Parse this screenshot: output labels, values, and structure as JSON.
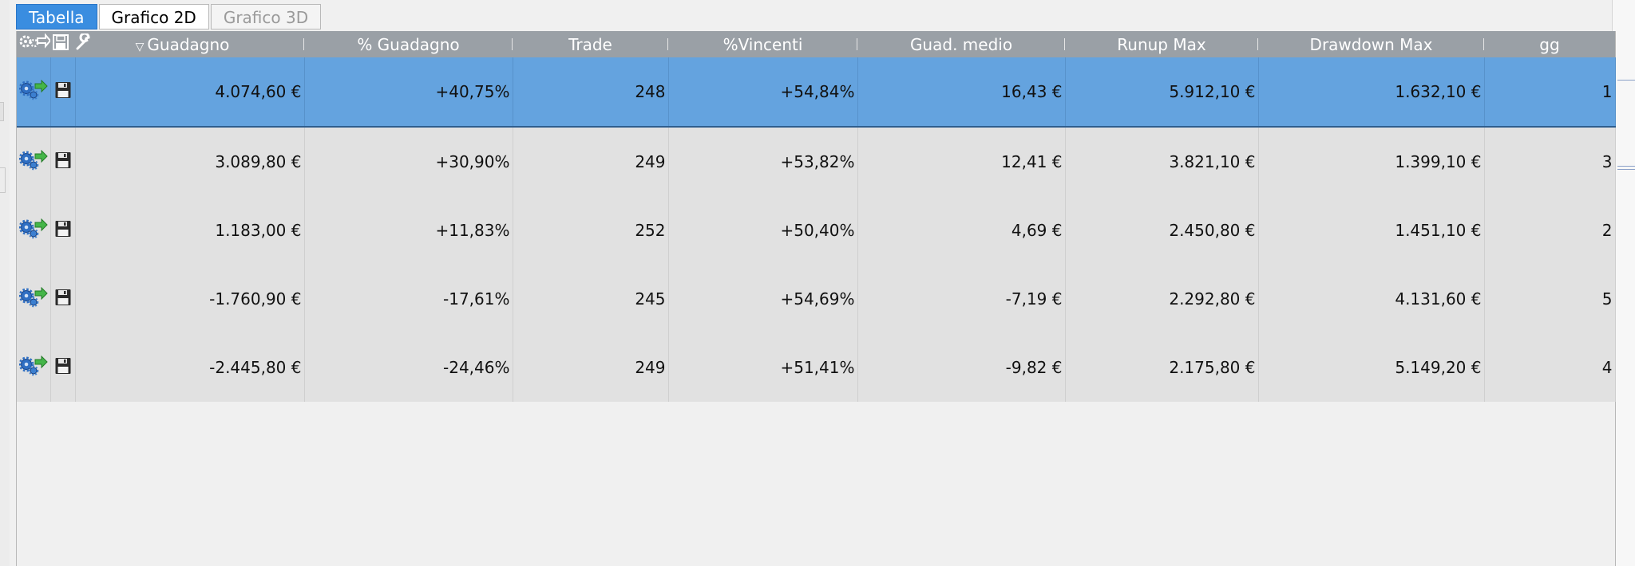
{
  "tabs": [
    {
      "label": "Tabella",
      "state": "active"
    },
    {
      "label": "Grafico 2D",
      "state": "normal"
    },
    {
      "label": "Grafico 3D",
      "state": "disabled"
    }
  ],
  "header_icons": [
    "gears-arrow-icon",
    "save-icon",
    "wrench-icon"
  ],
  "columns": [
    {
      "label": "Guadagno",
      "sorted": "desc"
    },
    {
      "label": "% Guadagno"
    },
    {
      "label": "Trade"
    },
    {
      "label": "%Vincenti"
    },
    {
      "label": "Guad. medio"
    },
    {
      "label": "Runup Max"
    },
    {
      "label": "Drawdown Max"
    },
    {
      "label": "gg"
    }
  ],
  "rows": [
    {
      "selected": true,
      "guadagno": "4.074,60 €",
      "pct_guadagno": "+40,75%",
      "trade": "248",
      "pct_vincenti": "+54,84%",
      "guad_medio": "16,43 €",
      "runup_max": "5.912,10 €",
      "drawdown_max": "1.632,10 €",
      "gg": "1"
    },
    {
      "selected": false,
      "guadagno": "3.089,80 €",
      "pct_guadagno": "+30,90%",
      "trade": "249",
      "pct_vincenti": "+53,82%",
      "guad_medio": "12,41 €",
      "runup_max": "3.821,10 €",
      "drawdown_max": "1.399,10 €",
      "gg": "3"
    },
    {
      "selected": false,
      "guadagno": "1.183,00 €",
      "pct_guadagno": "+11,83%",
      "trade": "252",
      "pct_vincenti": "+50,40%",
      "guad_medio": "4,69 €",
      "runup_max": "2.450,80 €",
      "drawdown_max": "1.451,10 €",
      "gg": "2"
    },
    {
      "selected": false,
      "guadagno": "-1.760,90 €",
      "pct_guadagno": "-17,61%",
      "trade": "245",
      "pct_vincenti": "+54,69%",
      "guad_medio": "-7,19 €",
      "runup_max": "2.292,80 €",
      "drawdown_max": "4.131,60 €",
      "gg": "5"
    },
    {
      "selected": false,
      "guadagno": "-2.445,80 €",
      "pct_guadagno": "-24,46%",
      "trade": "249",
      "pct_vincenti": "+51,41%",
      "guad_medio": "-9,82 €",
      "runup_max": "2.175,80 €",
      "drawdown_max": "5.149,20 €",
      "gg": "4"
    }
  ],
  "colors": {
    "tab_active": "#3a8de0",
    "header_bg": "#9aa0a6",
    "row_bg": "#e1e1e1",
    "row_selected": "#64a3df"
  }
}
